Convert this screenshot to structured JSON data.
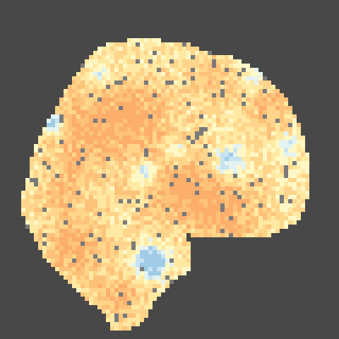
{
  "viewer": {
    "background_color": "#484848",
    "image_type": "brain-slice-voxel-map",
    "orientation": "sagittal",
    "palette": {
      "deep_blue": "#9fcbe6",
      "light_blue": "#c7e3f2",
      "pale_cyan": "#e4f3f1",
      "cream": "#fff8c6",
      "light_yellow": "#ffe9a3",
      "yellow_orange": "#fed58b",
      "light_orange": "#fdc27a",
      "orange": "#fcae6b",
      "missing_voxel": "#7a7a7a"
    }
  }
}
